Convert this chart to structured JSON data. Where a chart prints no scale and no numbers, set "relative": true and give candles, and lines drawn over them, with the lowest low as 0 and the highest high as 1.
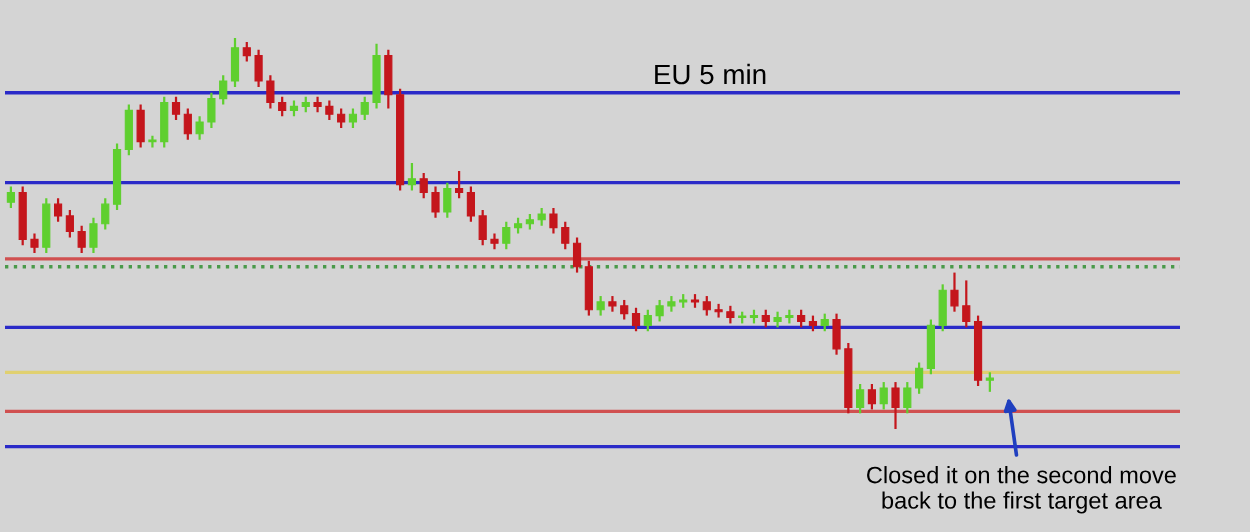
{
  "chart_data": {
    "type": "candlestick",
    "title": "EU 5 min",
    "relative": true,
    "categories": [
      null,
      null,
      null,
      null,
      null,
      null,
      null,
      null,
      null,
      null,
      null,
      null,
      null,
      null,
      null,
      null,
      null,
      null,
      null,
      null,
      null,
      null,
      null,
      null,
      null,
      null,
      null,
      null,
      null,
      null,
      null,
      null,
      null,
      null,
      null,
      null,
      null,
      null,
      null,
      null,
      null,
      null,
      null,
      null,
      null,
      null,
      null,
      null,
      null,
      null,
      null,
      null,
      null,
      null,
      null,
      null,
      null,
      null,
      null,
      null,
      null,
      null,
      null,
      null,
      null,
      null,
      null,
      null,
      null,
      null,
      null,
      null,
      null,
      null,
      null,
      null,
      null,
      null,
      null,
      null,
      null,
      null,
      null,
      null
    ],
    "ohlc": [
      [
        0.58,
        0.62,
        0.565,
        0.605
      ],
      [
        0.605,
        0.62,
        0.47,
        0.485
      ],
      [
        0.485,
        0.5,
        0.45,
        0.465
      ],
      [
        0.465,
        0.59,
        0.45,
        0.575
      ],
      [
        0.575,
        0.59,
        0.53,
        0.545
      ],
      [
        0.545,
        0.56,
        0.49,
        0.505
      ],
      [
        0.505,
        0.52,
        0.45,
        0.465
      ],
      [
        0.465,
        0.54,
        0.45,
        0.525
      ],
      [
        0.525,
        0.59,
        0.51,
        0.575
      ],
      [
        0.575,
        0.73,
        0.56,
        0.715
      ],
      [
        0.715,
        0.83,
        0.7,
        0.815
      ],
      [
        0.815,
        0.83,
        0.72,
        0.735
      ],
      [
        0.735,
        0.75,
        0.72,
        0.735
      ],
      [
        0.735,
        0.85,
        0.72,
        0.835
      ],
      [
        0.835,
        0.85,
        0.79,
        0.805
      ],
      [
        0.805,
        0.82,
        0.74,
        0.755
      ],
      [
        0.755,
        0.8,
        0.74,
        0.785
      ],
      [
        0.785,
        0.86,
        0.77,
        0.845
      ],
      [
        0.845,
        0.905,
        0.83,
        0.89
      ],
      [
        0.89,
        1.0,
        0.875,
        0.975
      ],
      [
        0.975,
        0.99,
        0.94,
        0.955
      ],
      [
        0.955,
        0.97,
        0.875,
        0.89
      ],
      [
        0.89,
        0.905,
        0.82,
        0.835
      ],
      [
        0.835,
        0.85,
        0.8,
        0.815
      ],
      [
        0.815,
        0.84,
        0.8,
        0.825
      ],
      [
        0.825,
        0.85,
        0.81,
        0.835
      ],
      [
        0.835,
        0.85,
        0.81,
        0.825
      ],
      [
        0.825,
        0.84,
        0.79,
        0.805
      ],
      [
        0.805,
        0.82,
        0.77,
        0.785
      ],
      [
        0.785,
        0.82,
        0.77,
        0.805
      ],
      [
        0.805,
        0.85,
        0.79,
        0.835
      ],
      [
        0.835,
        0.985,
        0.82,
        0.955
      ],
      [
        0.955,
        0.97,
        0.82,
        0.855
      ],
      [
        0.855,
        0.87,
        0.61,
        0.625
      ],
      [
        0.625,
        0.68,
        0.61,
        0.64
      ],
      [
        0.64,
        0.655,
        0.59,
        0.605
      ],
      [
        0.605,
        0.62,
        0.54,
        0.555
      ],
      [
        0.555,
        0.63,
        0.54,
        0.615
      ],
      [
        0.615,
        0.66,
        0.59,
        0.605
      ],
      [
        0.605,
        0.62,
        0.53,
        0.545
      ],
      [
        0.545,
        0.56,
        0.47,
        0.485
      ],
      [
        0.485,
        0.5,
        0.46,
        0.475
      ],
      [
        0.475,
        0.53,
        0.46,
        0.515
      ],
      [
        0.515,
        0.54,
        0.5,
        0.525
      ],
      [
        0.525,
        0.55,
        0.51,
        0.535
      ],
      [
        0.535,
        0.565,
        0.52,
        0.55
      ],
      [
        0.55,
        0.565,
        0.5,
        0.515
      ],
      [
        0.515,
        0.53,
        0.46,
        0.475
      ],
      [
        0.475,
        0.49,
        0.4,
        0.415
      ],
      [
        0.415,
        0.43,
        0.29,
        0.305
      ],
      [
        0.305,
        0.34,
        0.29,
        0.325
      ],
      [
        0.325,
        0.34,
        0.3,
        0.315
      ],
      [
        0.315,
        0.33,
        0.28,
        0.295
      ],
      [
        0.295,
        0.31,
        0.25,
        0.265
      ],
      [
        0.265,
        0.305,
        0.25,
        0.29
      ],
      [
        0.29,
        0.33,
        0.275,
        0.315
      ],
      [
        0.315,
        0.34,
        0.3,
        0.325
      ],
      [
        0.325,
        0.345,
        0.31,
        0.33
      ],
      [
        0.33,
        0.345,
        0.31,
        0.325
      ],
      [
        0.325,
        0.34,
        0.29,
        0.305
      ],
      [
        0.305,
        0.32,
        0.285,
        0.3
      ],
      [
        0.3,
        0.315,
        0.27,
        0.285
      ],
      [
        0.285,
        0.3,
        0.27,
        0.285
      ],
      [
        0.285,
        0.305,
        0.27,
        0.29
      ],
      [
        0.29,
        0.305,
        0.26,
        0.275
      ],
      [
        0.275,
        0.3,
        0.26,
        0.285
      ],
      [
        0.285,
        0.305,
        0.27,
        0.29
      ],
      [
        0.29,
        0.305,
        0.26,
        0.275
      ],
      [
        0.275,
        0.29,
        0.25,
        0.265
      ],
      [
        0.265,
        0.295,
        0.25,
        0.28
      ],
      [
        0.28,
        0.295,
        0.19,
        0.205
      ],
      [
        0.205,
        0.22,
        0.04,
        0.055
      ],
      [
        0.055,
        0.115,
        0.04,
        0.1
      ],
      [
        0.1,
        0.115,
        0.05,
        0.065
      ],
      [
        0.065,
        0.12,
        0.05,
        0.105
      ],
      [
        0.105,
        0.12,
        0.0,
        0.055
      ],
      [
        0.055,
        0.12,
        0.04,
        0.105
      ],
      [
        0.105,
        0.17,
        0.09,
        0.155
      ],
      [
        0.155,
        0.28,
        0.14,
        0.265
      ],
      [
        0.265,
        0.37,
        0.25,
        0.355
      ],
      [
        0.355,
        0.4,
        0.3,
        0.315
      ],
      [
        0.315,
        0.38,
        0.26,
        0.275
      ],
      [
        0.275,
        0.29,
        0.11,
        0.125
      ],
      [
        0.125,
        0.145,
        0.095,
        0.13
      ]
    ],
    "ref_lines": [
      {
        "axis": "y",
        "value": 0.86,
        "color": "#2a2ac8",
        "line_style": "solid"
      },
      {
        "axis": "y",
        "value": 0.63,
        "color": "#2a2ac8",
        "line_style": "solid"
      },
      {
        "axis": "y",
        "value": 0.435,
        "color": "#d05050",
        "line_style": "solid"
      },
      {
        "axis": "y",
        "value": 0.415,
        "color": "#4a9a4a",
        "line_style": "dotted"
      },
      {
        "axis": "y",
        "value": 0.26,
        "color": "#2a2ac8",
        "line_style": "solid"
      },
      {
        "axis": "y",
        "value": 0.145,
        "color": "#e0d070",
        "line_style": "solid"
      },
      {
        "axis": "y",
        "value": 0.045,
        "color": "#d05050",
        "line_style": "solid"
      },
      {
        "axis": "y",
        "value": -0.045,
        "color": "#2a2ac8",
        "line_style": "solid"
      }
    ],
    "annotations": [
      "Closed it on the second move\nback to the first target area"
    ]
  }
}
